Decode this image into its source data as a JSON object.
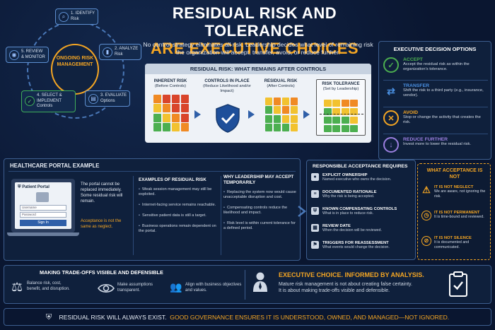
{
  "lifecycle": {
    "center": "ONGOING RISK MANAGEMENT",
    "steps": [
      {
        "num": "1. IDENTIFY",
        "sub": "Risk"
      },
      {
        "num": "2. ANALYZE",
        "sub": "Risk"
      },
      {
        "num": "3. EVALUATE",
        "sub": "Options"
      },
      {
        "num": "4. SELECT & IMPLEMENT",
        "sub": "Controls"
      },
      {
        "num": "5. REVIEW & MONITOR",
        "sub": ""
      }
    ]
  },
  "header": {
    "title_line1": "RESIDUAL RISK AND TOLERANCE",
    "title_line2": "ARE EXECUTIVE CHOICES",
    "subtitle": "No control strategy eliminates all risk. Leadership decides what level of remaining risk the organization will accept, transfer, avoid, or reduce further."
  },
  "residual_panel": {
    "heading": "RESIDUAL RISK: WHAT REMAINS AFTER CONTROLS",
    "inherent": {
      "title": "INHERENT RISK",
      "sub": "(Before Controls)"
    },
    "controls": {
      "title": "CONTROLS IN PLACE",
      "sub": "(Reduce Likelihood and/or Impact)"
    },
    "residual": {
      "title": "RESIDUAL RISK",
      "sub": "(After Controls)"
    },
    "tolerance": {
      "title": "RISK TOLERANCE",
      "sub": "(Set by Leadership)"
    }
  },
  "exec_options": {
    "title": "EXECUTIVE DECISION OPTIONS",
    "items": [
      {
        "head": "ACCEPT",
        "desc": "Accept the residual risk as within the organization's tolerance.",
        "color": "#4caf50"
      },
      {
        "head": "TRANSFER",
        "desc": "Shift the risk to a third party (e.g., insurance, vendor).",
        "color": "#4a90e2"
      },
      {
        "head": "AVOID",
        "desc": "Stop or change the activity that creates the risk.",
        "color": "#f5a623"
      },
      {
        "head": "REDUCE FURTHER",
        "desc": "Invest more to lower the residual risk.",
        "color": "#9b7fe0"
      }
    ]
  },
  "healthcare": {
    "title": "HEALTHCARE PORTAL EXAMPLE",
    "portal_title": "Patient Portal",
    "username": "Username",
    "password": "Password",
    "signin": "Sign In",
    "note": "The portal cannot be replaced immediately. Some residual risk will remain.",
    "note_orange": "Acceptance is not the same as neglect.",
    "examples_title": "EXAMPLES OF RESIDUAL RISK",
    "examples": [
      "Weak session management may still be exploited.",
      "Internet-facing service remains reachable.",
      "Sensitive patient data is still a target.",
      "Business operations remain dependent on the portal."
    ],
    "why_title": "WHY LEADERSHIP MAY ACCEPT TEMPORARILY",
    "why": [
      "Replacing the system now would cause unacceptable disruption and cost.",
      "Compensating controls reduce the likelihood and impact.",
      "Risk level is within current tolerance for a defined period."
    ]
  },
  "acceptance": {
    "title": "RESPONSIBLE ACCEPTANCE REQUIRES",
    "items": [
      {
        "head": "EXPLICIT OWNERSHIP",
        "desc": "Named executive who owns the decision."
      },
      {
        "head": "DOCUMENTED RATIONALE",
        "desc": "Why the risk is being accepted."
      },
      {
        "head": "KNOWN COMPENSATING CONTROLS",
        "desc": "What is in place to reduce risk."
      },
      {
        "head": "REVIEW DATE",
        "desc": "When the decision will be reviewed."
      },
      {
        "head": "TRIGGERS FOR REASSESSMENT",
        "desc": "What events would change the decision."
      }
    ]
  },
  "acceptance_not": {
    "title": "WHAT ACCEPTANCE IS NOT",
    "items": [
      {
        "head": "IT IS NOT NEGLECT",
        "desc": "We are aware, not ignoring the risk."
      },
      {
        "head": "IT IS NOT PERMANENT",
        "desc": "It is time-bound and reviewed."
      },
      {
        "head": "IT IS NOT SILENCE",
        "desc": "It is documented and communicated."
      }
    ]
  },
  "tradeoffs": {
    "title": "MAKING TRADE-OFFS VISIBLE AND DEFENSIBLE",
    "items": [
      "Balance risk, cost, benefit, and disruption.",
      "Make assumptions transparent.",
      "Align with business objectives and values."
    ],
    "exec_title": "EXECUTIVE CHOICE. INFORMED BY ANALYSIS.",
    "exec_desc1": "Mature risk management is not about creating false certainty.",
    "exec_desc2": "It is about making trade-offs visible and defensible."
  },
  "footer": {
    "text_a": "RESIDUAL RISK WILL ALWAYS EXIST.",
    "text_b": "GOOD GOVERNANCE ENSURES IT IS UNDERSTOOD, OWNED, AND MANAGED—NOT IGNORED."
  }
}
